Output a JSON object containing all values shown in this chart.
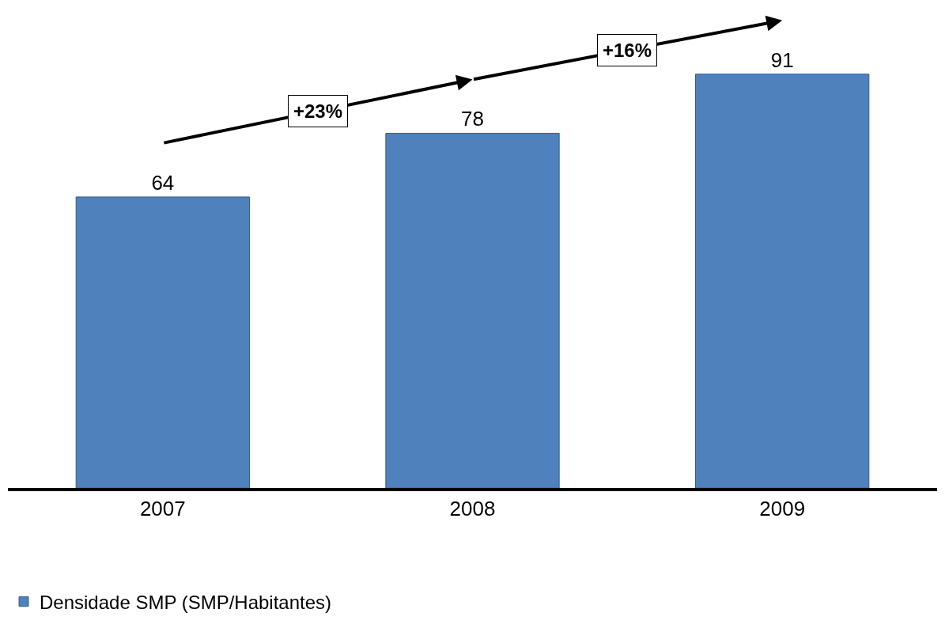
{
  "chart_data": {
    "type": "bar",
    "categories": [
      "2007",
      "2008",
      "2009"
    ],
    "series": [
      {
        "name": "Densidade SMP (SMP/Habitantes)",
        "color": "#4f81bd",
        "values": [
          64,
          78,
          91
        ]
      }
    ],
    "data_labels": true,
    "annotations": [
      "+23%",
      "+16%"
    ],
    "legend": "bottom left"
  }
}
